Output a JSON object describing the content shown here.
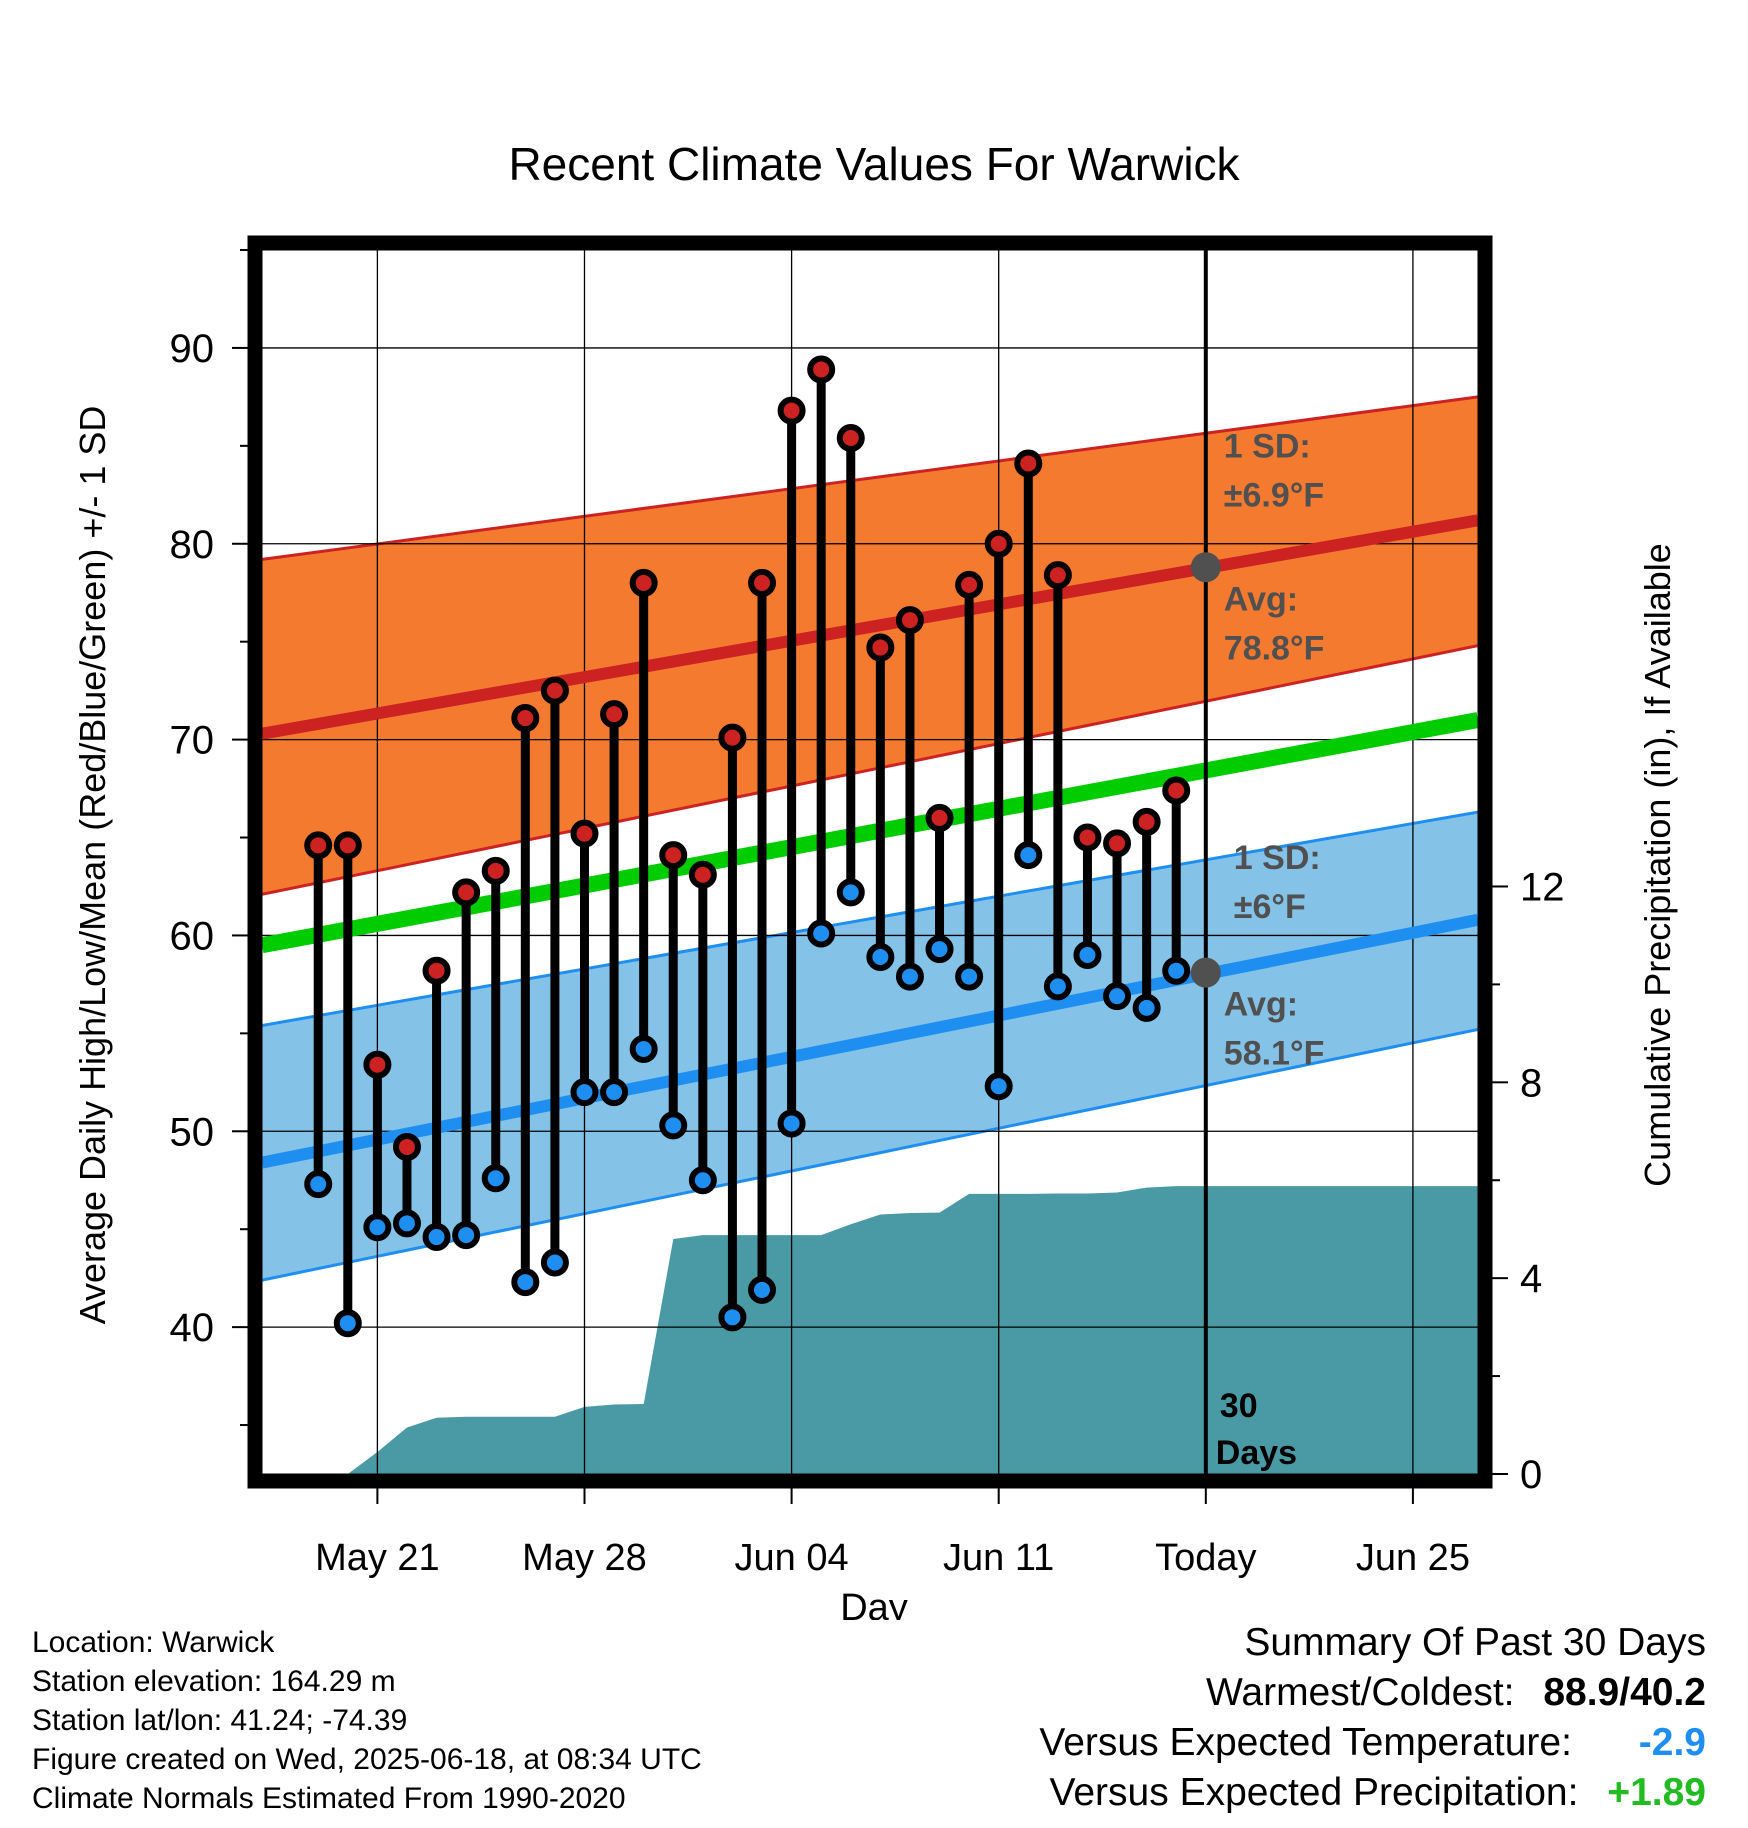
{
  "chart_data": {
    "type": "line",
    "title": "Recent Climate Values For Warwick",
    "xlabel": "Day",
    "ylabel": "Average Daily High/Low/Mean (Red/Blue/Green) +/- 1 SD",
    "y2label": "Cumulative Precipitation (in), If Available",
    "ylim": [
      32.5,
      95
    ],
    "y2lim": [
      0,
      25
    ],
    "x_day_range": [
      -31.9,
      9.2
    ],
    "x_tick_labels": [
      {
        "day": -28,
        "label": "May 21"
      },
      {
        "day": -21,
        "label": "May 28"
      },
      {
        "day": -14,
        "label": "Jun 04"
      },
      {
        "day": -7,
        "label": "Jun 11"
      },
      {
        "day": 0,
        "label": "Today"
      },
      {
        "day": 7,
        "label": "Jun 25"
      }
    ],
    "y_ticks": [
      40,
      50,
      60,
      70,
      80,
      90
    ],
    "y2_ticks": [
      0,
      4,
      8,
      12
    ],
    "grid": true,
    "colors": {
      "high": "#cc2222",
      "low": "#1e8ff0",
      "mean": "#00cc00",
      "high_band": "#f47a30",
      "low_band": "#85c2e8",
      "precip": "#4a9aa5",
      "marker_text": "#505050"
    },
    "normals": {
      "day_range": [
        -31.9,
        9.2
      ],
      "high_avg": [
        70.3,
        81.2
      ],
      "high_sd_upper": [
        79.2,
        87.5
      ],
      "high_sd_lower": [
        62.1,
        74.8
      ],
      "low_avg": [
        48.4,
        60.8
      ],
      "low_sd_upper": [
        55.4,
        66.3
      ],
      "low_sd_lower": [
        42.4,
        55.2
      ],
      "mean_avg": [
        59.5,
        71.0
      ]
    },
    "observations": [
      {
        "day": -30,
        "high": 64.6,
        "low": 47.3
      },
      {
        "day": -29,
        "high": 64.6,
        "low": 40.2
      },
      {
        "day": -28,
        "high": 53.4,
        "low": 45.1
      },
      {
        "day": -27,
        "high": 49.2,
        "low": 45.3
      },
      {
        "day": -26,
        "high": 58.2,
        "low": 44.6
      },
      {
        "day": -25,
        "high": 62.2,
        "low": 44.7
      },
      {
        "day": -24,
        "high": 63.3,
        "low": 47.6
      },
      {
        "day": -23,
        "high": 71.1,
        "low": 42.3
      },
      {
        "day": -22,
        "high": 72.5,
        "low": 43.3
      },
      {
        "day": -21,
        "high": 65.2,
        "low": 52.0
      },
      {
        "day": -20,
        "high": 71.3,
        "low": 52.0
      },
      {
        "day": -19,
        "high": 78.0,
        "low": 54.2
      },
      {
        "day": -18,
        "high": 64.1,
        "low": 50.3
      },
      {
        "day": -17,
        "high": 63.1,
        "low": 47.5
      },
      {
        "day": -16,
        "high": 70.1,
        "low": 40.5
      },
      {
        "day": -15,
        "high": 78.0,
        "low": 41.9
      },
      {
        "day": -14,
        "high": 86.8,
        "low": 50.4
      },
      {
        "day": -13,
        "high": 88.9,
        "low": 60.1
      },
      {
        "day": -12,
        "high": 85.4,
        "low": 62.2
      },
      {
        "day": -11,
        "high": 74.7,
        "low": 58.9
      },
      {
        "day": -10,
        "high": 76.1,
        "low": 57.9
      },
      {
        "day": -9,
        "high": 66.0,
        "low": 59.3
      },
      {
        "day": -8,
        "high": 77.9,
        "low": 57.9
      },
      {
        "day": -7,
        "high": 80.0,
        "low": 52.3
      },
      {
        "day": -6,
        "high": 84.1,
        "low": 64.1
      },
      {
        "day": -5,
        "high": 78.4,
        "low": 57.4
      },
      {
        "day": -4,
        "high": 65.0,
        "low": 59.0
      },
      {
        "day": -3,
        "high": 64.7,
        "low": 56.9
      },
      {
        "day": -2,
        "high": 65.8,
        "low": 56.3
      },
      {
        "day": -1,
        "high": 67.4,
        "low": 58.2
      }
    ],
    "precip_cumulative": [
      {
        "day": -31,
        "value": 0.0
      },
      {
        "day": -30,
        "value": 0.0
      },
      {
        "day": -29,
        "value": 0.0
      },
      {
        "day": -28,
        "value": 0.45
      },
      {
        "day": -27,
        "value": 0.95
      },
      {
        "day": -26,
        "value": 1.15
      },
      {
        "day": -25,
        "value": 1.17
      },
      {
        "day": -24,
        "value": 1.17
      },
      {
        "day": -23,
        "value": 1.17
      },
      {
        "day": -22,
        "value": 1.17
      },
      {
        "day": -21,
        "value": 1.37
      },
      {
        "day": -20,
        "value": 1.42
      },
      {
        "day": -19,
        "value": 1.43
      },
      {
        "day": -18,
        "value": 4.8
      },
      {
        "day": -17,
        "value": 4.88
      },
      {
        "day": -16,
        "value": 4.88
      },
      {
        "day": -15,
        "value": 4.88
      },
      {
        "day": -14,
        "value": 4.88
      },
      {
        "day": -13,
        "value": 4.88
      },
      {
        "day": -12,
        "value": 5.1
      },
      {
        "day": -11,
        "value": 5.3
      },
      {
        "day": -10,
        "value": 5.33
      },
      {
        "day": -9,
        "value": 5.34
      },
      {
        "day": -8,
        "value": 5.72
      },
      {
        "day": -7,
        "value": 5.72
      },
      {
        "day": -6,
        "value": 5.72
      },
      {
        "day": -5,
        "value": 5.73
      },
      {
        "day": -4,
        "value": 5.73
      },
      {
        "day": -3,
        "value": 5.75
      },
      {
        "day": -2,
        "value": 5.85
      },
      {
        "day": -1,
        "value": 5.88
      },
      {
        "day": 0,
        "value": 5.88
      },
      {
        "day": 9.2,
        "value": 5.88
      }
    ],
    "annotations": {
      "high_sd_label": "1 SD:",
      "high_sd_value": "±6.9°F",
      "high_avg_label": "Avg:",
      "high_avg_value": "78.8°F",
      "high_avg_today": 78.8,
      "low_sd_label": "1 SD:",
      "low_sd_value": "±6°F",
      "low_avg_label": "Avg:",
      "low_avg_value": "58.1°F",
      "low_avg_today": 58.1,
      "days_line1": "30",
      "days_line2": "Days"
    }
  },
  "footer": {
    "location": "Location: Warwick",
    "elevation": "Station elevation: 164.29 m",
    "latlon": "Station lat/lon: 41.24; -74.39",
    "created": "Figure created on Wed, 2025-06-18, at 08:34 UTC",
    "normals": "Climate Normals Estimated From 1990-2020"
  },
  "summary": {
    "title": "Summary Of Past 30 Days",
    "warm_cold_label": "Warmest/Coldest:",
    "warm_cold_value": "88.9/40.2",
    "temp_label": "Versus Expected Temperature:",
    "temp_value": "-2.9",
    "temp_color": "#1e8ff0",
    "precip_label": "Versus Expected Precipitation:",
    "precip_value": "+1.89",
    "precip_color": "#22bb22"
  }
}
